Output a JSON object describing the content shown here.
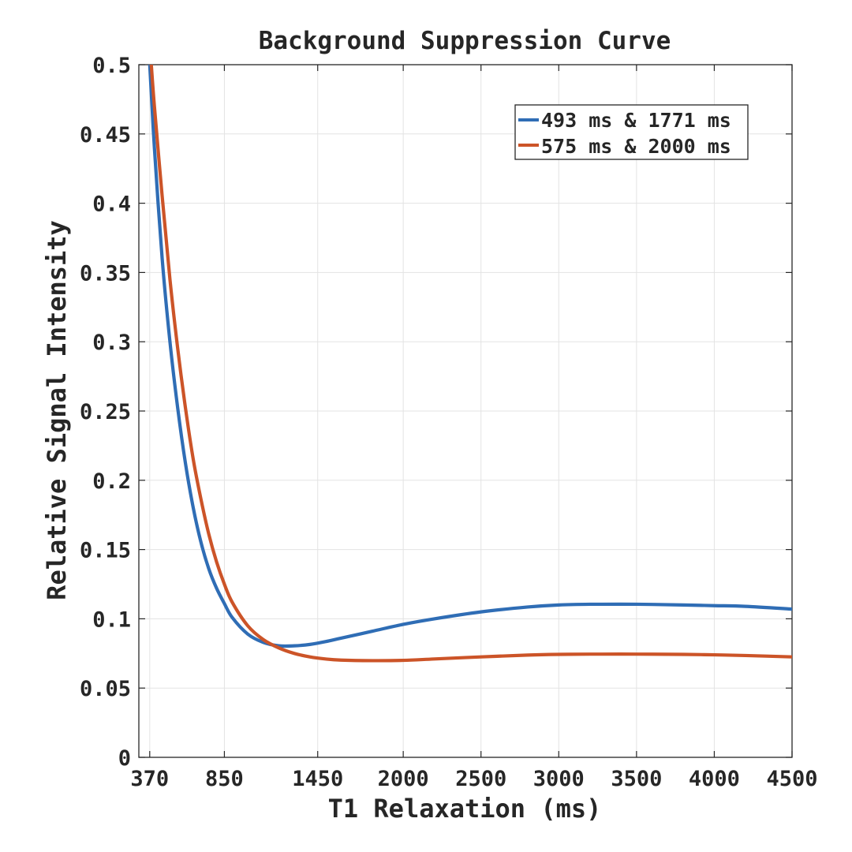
{
  "chart_data": {
    "type": "line",
    "title": "Background Suppression Curve",
    "xlabel": "T1 Relaxation (ms)",
    "ylabel": "Relative Signal Intensity",
    "xlim": [
      300,
      4500
    ],
    "ylim": [
      0,
      0.5
    ],
    "x_ticks": [
      370,
      850,
      1450,
      2000,
      2500,
      3000,
      3500,
      4000,
      4500
    ],
    "y_ticks": [
      0,
      0.05,
      0.1,
      0.15,
      0.2,
      0.25,
      0.3,
      0.35,
      0.4,
      0.45,
      0.5
    ],
    "x_tick_labels": [
      "370",
      "850",
      "1450",
      "2000",
      "2500",
      "3000",
      "3500",
      "4000",
      "4500"
    ],
    "y_tick_labels": [
      "0",
      "0.05",
      "0.1",
      "0.15",
      "0.2",
      "0.25",
      "0.3",
      "0.35",
      "0.4",
      "0.45",
      "0.5"
    ],
    "grid": true,
    "legend_position": "top-right",
    "series": [
      {
        "name": "493 ms & 1771 ms",
        "color": "#2f6db5",
        "x": [
          370,
          400,
          450,
          500,
          550,
          600,
          650,
          700,
          750,
          800,
          850,
          900,
          1000,
          1100,
          1200,
          1300,
          1400,
          1500,
          1600,
          1800,
          2000,
          2200,
          2500,
          2800,
          3000,
          3200,
          3500,
          3800,
          4000,
          4200,
          4500
        ],
        "values": [
          0.5,
          0.44,
          0.36,
          0.3,
          0.252,
          0.212,
          0.18,
          0.155,
          0.136,
          0.122,
          0.111,
          0.101,
          0.089,
          0.083,
          0.0805,
          0.0805,
          0.0815,
          0.0835,
          0.086,
          0.091,
          0.096,
          0.1,
          0.105,
          0.1085,
          0.11,
          0.1105,
          0.1105,
          0.11,
          0.1095,
          0.109,
          0.107
        ]
      },
      {
        "name": "575 ms & 2000 ms",
        "color": "#cc5428",
        "x": [
          380,
          400,
          450,
          500,
          550,
          600,
          650,
          700,
          750,
          800,
          850,
          900,
          1000,
          1100,
          1200,
          1300,
          1400,
          1500,
          1600,
          1800,
          2000,
          2200,
          2500,
          2800,
          3000,
          3200,
          3500,
          3800,
          4000,
          4200,
          4500
        ],
        "values": [
          0.5,
          0.47,
          0.405,
          0.345,
          0.295,
          0.252,
          0.215,
          0.186,
          0.161,
          0.141,
          0.125,
          0.112,
          0.095,
          0.085,
          0.079,
          0.075,
          0.0725,
          0.071,
          0.0702,
          0.0698,
          0.07,
          0.071,
          0.0725,
          0.0738,
          0.0743,
          0.0745,
          0.0745,
          0.0743,
          0.074,
          0.0735,
          0.0725
        ]
      }
    ]
  }
}
